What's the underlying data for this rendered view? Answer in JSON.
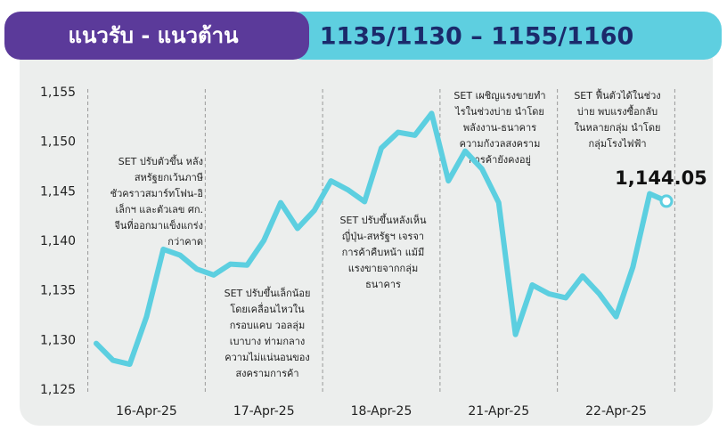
{
  "header": {
    "title": "แนวรับ - แนวต้าน",
    "levels": "1135/1130 – 1155/1160"
  },
  "chart_data": {
    "type": "line",
    "categories": [
      null,
      null,
      null,
      "16-Apr-25",
      null,
      null,
      null,
      null,
      null,
      null,
      "17-Apr-25",
      null,
      null,
      null,
      null,
      null,
      null,
      "18-Apr-25",
      null,
      null,
      null,
      null,
      null,
      null,
      "21-Apr-25",
      null,
      null,
      null,
      null,
      null,
      null,
      "22-Apr-25",
      null,
      null,
      null
    ],
    "series": [
      {
        "color": "#5ccfe0",
        "values": [
          1129.7,
          1128.0,
          1127.6,
          1132.4,
          1139.2,
          1138.6,
          1137.2,
          1136.6,
          1137.7,
          1137.6,
          1140.1,
          1143.9,
          1141.3,
          1143.1,
          1146.1,
          1145.2,
          1144.0,
          1149.4,
          1151.0,
          1150.7,
          1152.9,
          1146.1,
          1149.1,
          1147.3,
          1143.9,
          1130.6,
          1135.6,
          1134.7,
          1134.3,
          1136.5,
          1134.7,
          1132.4,
          1137.4,
          1144.8,
          1144.05
        ],
        "value_labels": [
          null,
          null,
          null,
          null,
          null,
          null,
          null,
          null,
          null,
          null,
          null,
          null,
          null,
          null,
          null,
          null,
          null,
          null,
          null,
          null,
          null,
          null,
          null,
          null,
          null,
          null,
          null,
          null,
          null,
          null,
          null,
          null,
          null,
          null,
          "1,144.05"
        ]
      }
    ],
    "ylim": [
      1125,
      1155
    ],
    "yticks": [
      {
        "value": 1125,
        "label": "1,125"
      },
      {
        "value": 1130,
        "label": "1,130"
      },
      {
        "value": 1135,
        "label": "1,135"
      },
      {
        "value": 1140,
        "label": "1,140"
      },
      {
        "value": 1145,
        "label": "1,145"
      },
      {
        "value": 1150,
        "label": "1,150"
      },
      {
        "value": 1155,
        "label": "1,155"
      }
    ],
    "annotations": [
      [
        "SET ปรับตัวขึ้น หลัง",
        "สหรัฐยกเว้นภาษี",
        "ชัวคราวสมาร์ทโฟน-อิ",
        "เล็กฯ และตัวเลข ศก.",
        "จีนที่ออกมาแข็งแกร่ง",
        "กว่าคาด"
      ],
      [
        "SET ปรับขึ้นเล็กน้อย",
        "โดยเคลื่อนไหวใน",
        "กรอบแคบ วอลลุ่ม",
        "เบาบาง ท่ามกลาง",
        "ความไม่แน่นอนของ",
        "สงครามการค้า"
      ],
      [
        "SET ปรับขึ้นหลังเห็น",
        "ญี่ปุ่น-สหรัฐฯ เจรจา",
        "การค้าคืบหน้า แม้มี",
        "แรงขายจากกลุ่ม",
        "ธนาคาร"
      ],
      [
        "SET เผชิญแรงขายทำ",
        "ไรในช่วงบ่าย นำโดย",
        "พลังงาน-ธนาคาร",
        "ความกังวลสงคราม",
        "การค้ายังคงอยู่"
      ],
      [
        "SET ฟื้นตัวได้ในช่วง",
        "บ่าย พบแรงซื้อกลับ",
        "ในหลายกลุ่ม นำโดย",
        "กลุ่มโรงไฟฟ้า"
      ]
    ]
  }
}
